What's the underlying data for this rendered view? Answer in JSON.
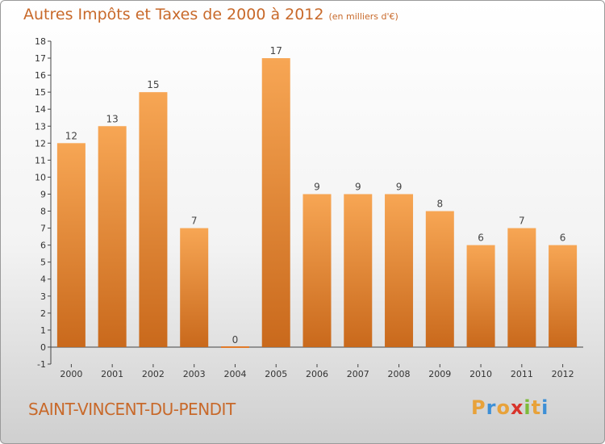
{
  "title": "Autres Impôts et Taxes de 2000 à 2012",
  "subtitle": "(en milliers d'€)",
  "commune": "SAINT-VINCENT-DU-PENDIT",
  "logo": {
    "letters": [
      "P",
      "r",
      "o",
      "x",
      "i",
      "t",
      "i"
    ],
    "colors": [
      "#e8a23a",
      "#3d8fd6",
      "#e8a23a",
      "#d8342b",
      "#7dbb3a",
      "#e8a23a",
      "#3d8fd6"
    ]
  },
  "colors": {
    "bar_top": "#f7a654",
    "bar_bottom": "#c9691c",
    "text_accent": "#c8692a",
    "axis": "#444444",
    "grid": "#cccccc"
  },
  "chart_data": {
    "type": "bar",
    "title": "Autres Impôts et Taxes de 2000 à 2012",
    "subtitle": "(en milliers d'€)",
    "categories": [
      "2000",
      "2001",
      "2002",
      "2003",
      "2004",
      "2005",
      "2006",
      "2007",
      "2008",
      "2009",
      "2010",
      "2011",
      "2012"
    ],
    "values": [
      12,
      13,
      15,
      7,
      0,
      17,
      9,
      9,
      9,
      8,
      6,
      7,
      6
    ],
    "ylim": [
      -1,
      18
    ],
    "yticks": [
      -1,
      0,
      1,
      2,
      3,
      4,
      5,
      6,
      7,
      8,
      9,
      10,
      11,
      12,
      13,
      14,
      15,
      16,
      17,
      18
    ],
    "grid": false,
    "legend": "none"
  }
}
